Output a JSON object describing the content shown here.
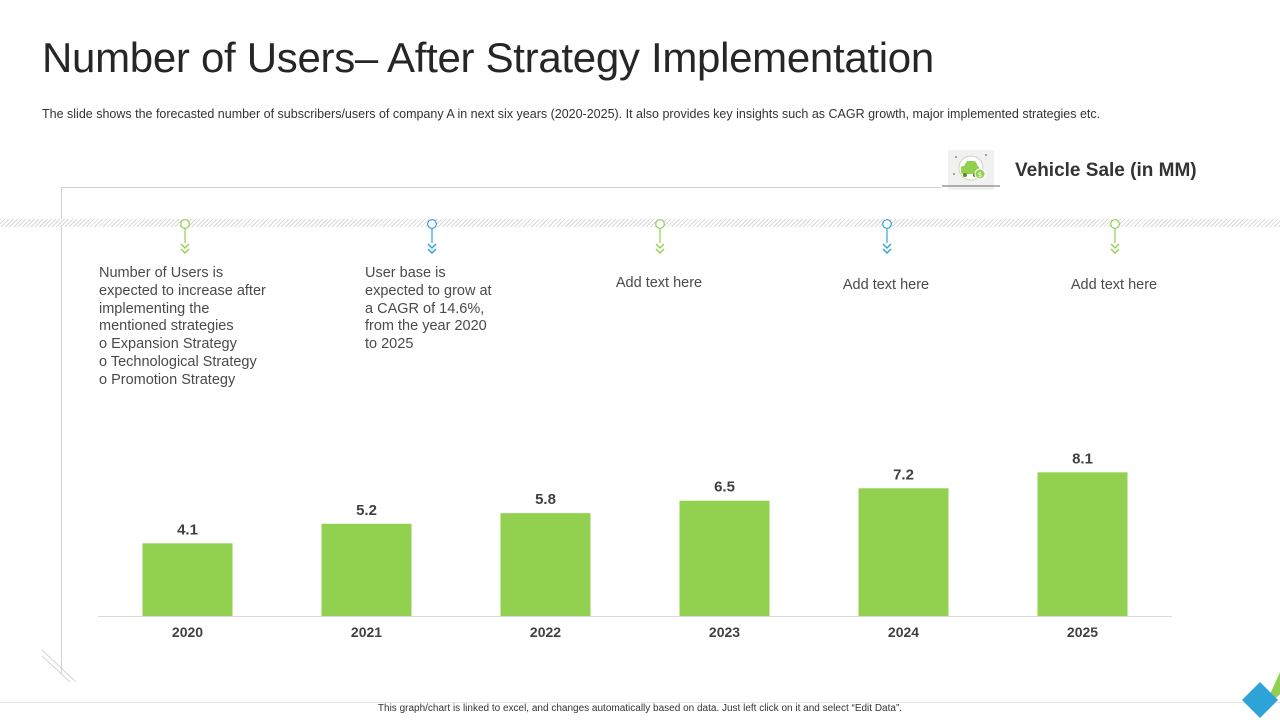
{
  "slide": {
    "title": "Number of Users– After Strategy Implementation",
    "subtitle": "The slide shows the forecasted number of subscribers/users of company A in next six years (2020-2025).  It also provides  key insights such as CAGR growth, major implemented strategies etc.",
    "footer": "This graph/chart is linked to excel, and changes automatically based on data. Just left click on it and select “Edit Data”."
  },
  "legend": {
    "label": "Vehicle Sale (in MM)",
    "icon": "car-money-icon"
  },
  "notes": [
    {
      "lines": [
        "Number of Users is",
        "expected to increase after",
        "implementing the",
        "mentioned strategies",
        "o Expansion Strategy",
        "o Technological Strategy",
        "o Promotion Strategy"
      ],
      "color": "#92d050"
    },
    {
      "lines": [
        "User base is",
        "expected to grow at",
        "a CAGR of 14.6%,",
        "from the year 2020",
        "to 2025"
      ],
      "color": "#2ea3d8"
    },
    {
      "lines": [
        "Add text here"
      ],
      "color": "#92d050"
    },
    {
      "lines": [
        "Add text here"
      ],
      "color": "#2ea3d8"
    },
    {
      "lines": [
        "Add text here"
      ],
      "color": "#92d050"
    }
  ],
  "colors": {
    "bar": "#92d050",
    "accent_blue": "#2ea3d8",
    "accent_green": "#92d050"
  },
  "chart_data": {
    "type": "bar",
    "title": "",
    "xlabel": "",
    "ylabel": "",
    "categories": [
      "2020",
      "2021",
      "2022",
      "2023",
      "2024",
      "2025"
    ],
    "series": [
      {
        "name": "Vehicle Sale (in MM)",
        "values": [
          4.1,
          5.2,
          5.8,
          6.5,
          7.2,
          8.1
        ]
      }
    ],
    "ylim": [
      0,
      10.6
    ],
    "grid": false,
    "data_labels": [
      "4.1",
      "5.2",
      "5.8",
      "6.5",
      "7.2",
      "8.1"
    ]
  }
}
